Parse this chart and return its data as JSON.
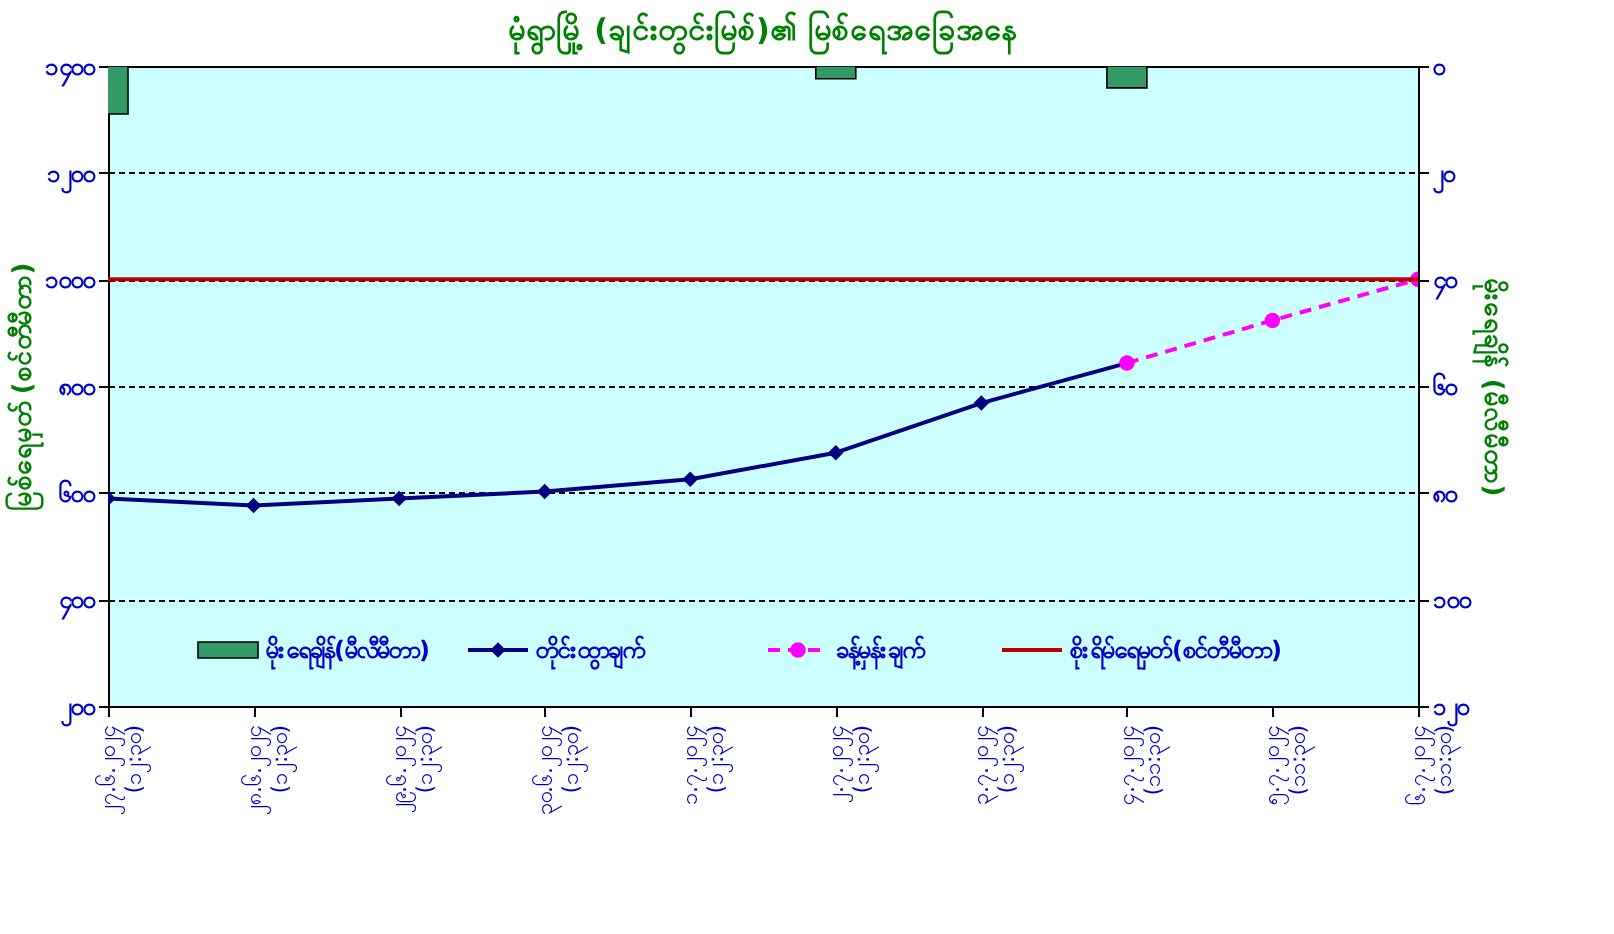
{
  "chart_data": {
    "type": "line",
    "title": "မုံရွာမြို့ (ချင်းတွင်းမြစ်)၏ မြစ်ရေအခြေအနေ",
    "ylabel": "မြစ်ရေမှတ် (စင်တီမီတာ)",
    "y2label": "မိုးရေချိန် (မီလီမီတာ)",
    "categories": [
      "၂၇.၆.၂၀၂၄\n(၁၂:၃၀)",
      "၂၈.၆.၂၀၂၄\n(၁၂:၃၀)",
      "၂၉.၆.၂၀၂၄\n(၁၂:၃၀)",
      "၃၀.၆.၂၀၂၄\n(၁၂:၃၀)",
      "၁.၇.၂၀၂၄\n(၁၂:၃၀)",
      "၂.၇.၂၀၂၄\n(၁၂:၃၀)",
      "၃.၇.၂၀၂၄\n(၁၂:၃၀)",
      "၄.၇.၂၀၂၄\n(၁၁:၃၀)",
      "၅.၇.၂၀၂၄\n(၁၁:၃၀)",
      "၆.၇.၂၀၂၄\n(၁၁:၃၀)"
    ],
    "series": [
      {
        "name": "မိုးရေချိန်(မီလီမီတာ)",
        "type": "bar",
        "axis": "y2",
        "color": "#339966",
        "values": [
          9,
          null,
          null,
          null,
          null,
          2.4,
          null,
          4.1,
          null,
          null
        ]
      },
      {
        "name": "တိုင်းထွာချက်",
        "color": "#000080",
        "marker": "diamond",
        "line_style": "solid",
        "values": [
          589,
          576,
          589,
          602,
          625,
          675,
          768,
          843,
          null,
          null
        ]
      },
      {
        "name": "ခန့်မှန်းချက်",
        "color": "#ff00ff",
        "marker": "circle",
        "line_style": "dashed",
        "values": [
          null,
          null,
          null,
          null,
          null,
          null,
          null,
          843,
          923,
          1000
        ]
      }
    ],
    "ref_lines": [
      {
        "axis": "y",
        "value": 1000,
        "label": "စိုးရိမ်ရေမှတ်(စင်တီမီတာ)",
        "color": "#c00000",
        "line_style": "solid"
      }
    ],
    "ylim": [
      200,
      1400
    ],
    "yticks": [
      {
        "value": 200,
        "label": "၂၀၀"
      },
      {
        "value": 400,
        "label": "၄၀၀"
      },
      {
        "value": 600,
        "label": "၆၀၀"
      },
      {
        "value": 800,
        "label": "၈၀၀"
      },
      {
        "value": 1000,
        "label": "၁၀၀၀"
      },
      {
        "value": 1200,
        "label": "၁၂၀၀"
      },
      {
        "value": 1400,
        "label": "၁၄၀၀"
      }
    ],
    "y2lim": [
      120,
      0
    ],
    "y2ticks": [
      {
        "value": 0,
        "label": "၀"
      },
      {
        "value": 20,
        "label": "၂၀"
      },
      {
        "value": 40,
        "label": "၄၀"
      },
      {
        "value": 60,
        "label": "၆၀"
      },
      {
        "value": 80,
        "label": "၈၀"
      },
      {
        "value": 100,
        "label": "၁၀၀"
      },
      {
        "value": 120,
        "label": "၁၂၀"
      }
    ],
    "grid": "y",
    "legend": "bottom"
  }
}
